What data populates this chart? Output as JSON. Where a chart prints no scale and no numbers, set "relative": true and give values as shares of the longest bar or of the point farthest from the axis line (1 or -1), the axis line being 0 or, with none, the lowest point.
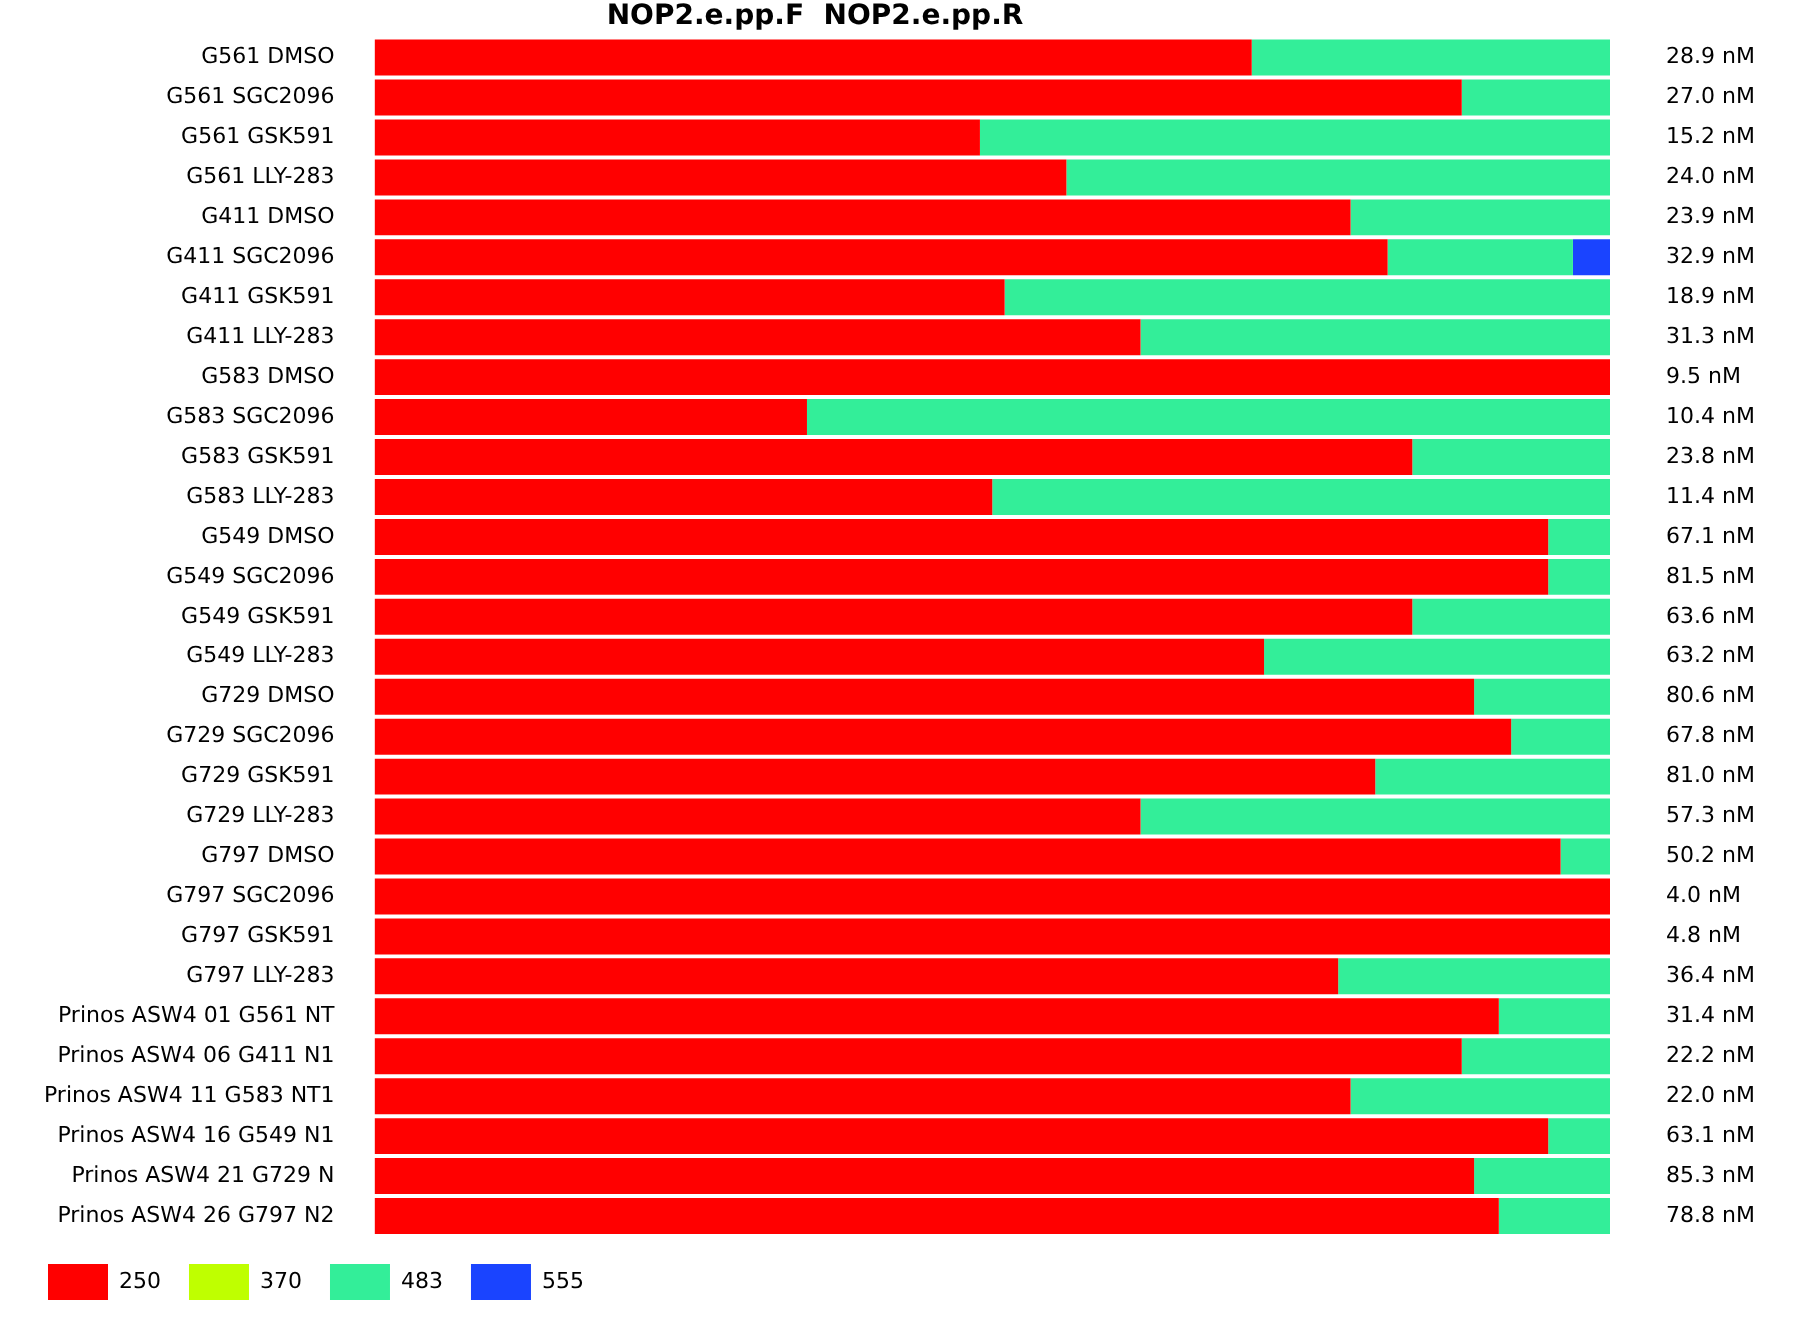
{
  "chart_data": {
    "type": "bar",
    "orientation": "horizontal",
    "stacked": true,
    "relative": true,
    "title": "NOP2.e.pp.F  NOP2.e.pp.R",
    "legend": "bottom",
    "categories": [
      "G561 DMSO",
      "G561 SGC2096",
      "G561 GSK591",
      "G561 LLY-283",
      "G411 DMSO",
      "G411 SGC2096",
      "G411 GSK591",
      "G411 LLY-283",
      "G583 DMSO",
      "G583 SGC2096",
      "G583 GSK591",
      "G583 LLY-283",
      "G549 DMSO",
      "G549 SGC2096",
      "G549 GSK591",
      "G549 LLY-283",
      "G729 DMSO",
      "G729 SGC2096",
      "G729 GSK591",
      "G729 LLY-283",
      "G797 DMSO",
      "G797 SGC2096",
      "G797 GSK591",
      "G797 LLY-283",
      "Prinos ASW4 01 G561 NT",
      "Prinos ASW4 06 G411 N1",
      "Prinos ASW4 11 G583 NT1",
      "Prinos ASW4 16 G549 N1",
      "Prinos ASW4 21 G729 N",
      "Prinos ASW4 26 G797 N2"
    ],
    "series": [
      {
        "name": "250",
        "color": "#ff0000",
        "values": [
          0.71,
          0.88,
          0.49,
          0.56,
          0.79,
          0.82,
          0.51,
          0.62,
          1,
          0.35,
          0.84,
          0.5,
          0.95,
          0.95,
          0.84,
          0.72,
          0.89,
          0.92,
          0.81,
          0.62,
          0.96,
          1,
          1,
          0.78,
          0.91,
          0.88,
          0.79,
          0.95,
          0.89,
          0.91
        ]
      },
      {
        "name": "370",
        "color": "#bfff00",
        "values": [
          0,
          0,
          0,
          0,
          0,
          0,
          0,
          0,
          0,
          0,
          0,
          0,
          0,
          0,
          0,
          0,
          0,
          0,
          0,
          0,
          0,
          0,
          0,
          0,
          0,
          0,
          0,
          0,
          0,
          0
        ]
      },
      {
        "name": "483",
        "color": "#33ee99",
        "values": [
          0.29,
          0.12,
          0.51,
          0.44,
          0.21,
          0.15,
          0.49,
          0.38,
          0,
          0.65,
          0.16,
          0.5,
          0.05,
          0.05,
          0.16,
          0.28,
          0.11,
          0.08,
          0.19,
          0.38,
          0.04,
          0,
          0,
          0.22,
          0.09,
          0.12,
          0.21,
          0.05,
          0.11,
          0.09
        ]
      },
      {
        "name": "555",
        "color": "#1a44ff",
        "values": [
          0,
          0,
          0,
          0,
          0,
          0.03,
          0,
          0,
          0,
          0,
          0,
          0,
          0,
          0,
          0,
          0,
          0,
          0,
          0,
          0,
          0,
          0,
          0,
          0,
          0,
          0,
          0,
          0,
          0,
          0
        ]
      }
    ],
    "annotations": [
      "28.9 nM",
      "27.0 nM",
      "15.2 nM",
      "24.0 nM",
      "23.9 nM",
      "32.9 nM",
      "18.9 nM",
      "31.3 nM",
      "9.5 nM",
      "10.4 nM",
      "23.8 nM",
      "11.4 nM",
      "67.1 nM",
      "81.5 nM",
      "63.6 nM",
      "63.2 nM",
      "80.6 nM",
      "67.8 nM",
      "81.0 nM",
      "57.3 nM",
      "50.2 nM",
      "4.0 nM",
      "4.8 nM",
      "36.4 nM",
      "31.4 nM",
      "22.2 nM",
      "22.0 nM",
      "63.1 nM",
      "85.3 nM",
      "78.8 nM"
    ]
  }
}
